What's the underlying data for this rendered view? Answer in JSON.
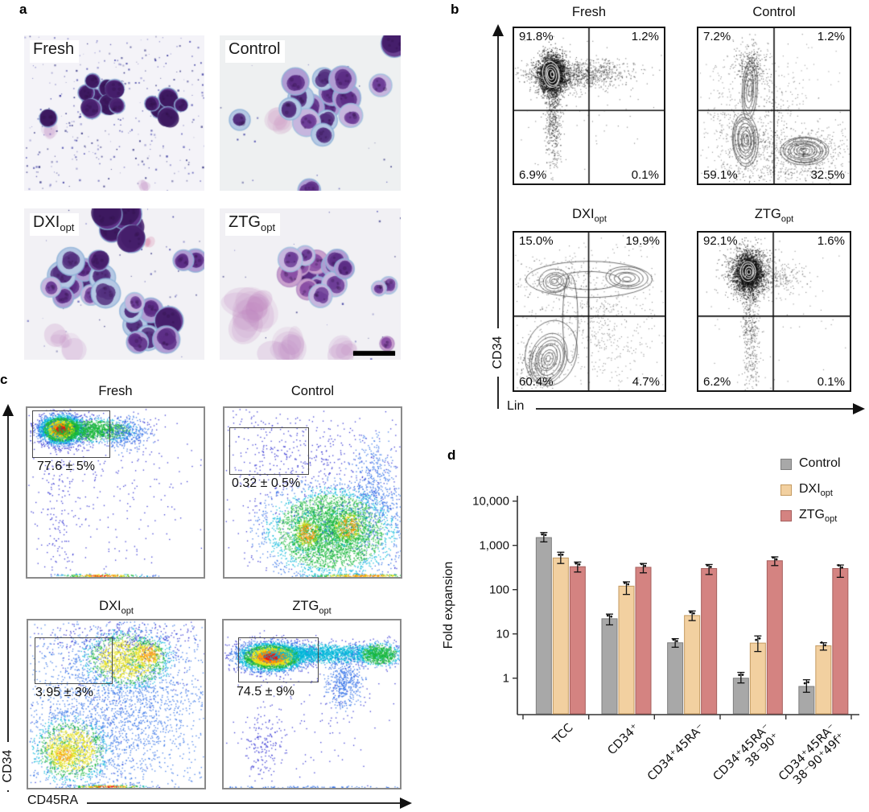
{
  "panel_a": {
    "label": "a",
    "images": [
      {
        "title_base": "Fresh",
        "title_sub": ""
      },
      {
        "title_base": "Control",
        "title_sub": ""
      },
      {
        "title_base": "DXI",
        "title_sub": "opt"
      },
      {
        "title_base": "ZTG",
        "title_sub": "opt"
      }
    ],
    "scale_bar_present": true
  },
  "panel_b": {
    "label": "b",
    "x_axis": "Lin",
    "y_axis": "CD34",
    "plots": [
      {
        "title_base": "Fresh",
        "title_sub": "",
        "q": {
          "tl": "91.8%",
          "tr": "1.2%",
          "bl": "6.9%",
          "br": "0.1%"
        }
      },
      {
        "title_base": "Control",
        "title_sub": "",
        "q": {
          "tl": "7.2%",
          "tr": "1.2%",
          "bl": "59.1%",
          "br": "32.5%"
        }
      },
      {
        "title_base": "DXI",
        "title_sub": "opt",
        "q": {
          "tl": "15.0%",
          "tr": "19.9%",
          "bl": "60.4%",
          "br": "4.7%"
        }
      },
      {
        "title_base": "ZTG",
        "title_sub": "opt",
        "q": {
          "tl": "92.1%",
          "tr": "1.6%",
          "bl": "6.2%",
          "br": "0.1%"
        }
      }
    ]
  },
  "panel_c": {
    "label": "c",
    "x_axis": "CD45RA",
    "y_axis": "CD34",
    "plots": [
      {
        "title_base": "Fresh",
        "title_sub": "",
        "gate_value": "77.6 ± 5%"
      },
      {
        "title_base": "Control",
        "title_sub": "",
        "gate_value": "0.32 ± 0.5%"
      },
      {
        "title_base": "DXI",
        "title_sub": "opt",
        "gate_value": "3.95 ± 3%"
      },
      {
        "title_base": "ZTG",
        "title_sub": "opt",
        "gate_value": "74.5 ± 9%"
      }
    ]
  },
  "panel_d": {
    "label": "d",
    "legend": [
      {
        "label_base": "Control",
        "label_sub": "",
        "color": "#a8a8a8",
        "border": "#7e7e7e"
      },
      {
        "label_base": "DXI",
        "label_sub": "opt",
        "color": "#f2d0a0",
        "border": "#c49a60"
      },
      {
        "label_base": "ZTG",
        "label_sub": "opt",
        "color": "#d48381",
        "border": "#a65f5d"
      }
    ]
  },
  "chart_data": {
    "type": "bar",
    "log_scale": true,
    "title": "",
    "xlabel": "",
    "ylabel": "Fold expansion",
    "ylim": [
      0.15,
      10000
    ],
    "yticks": [
      1,
      10,
      100,
      1000,
      10000
    ],
    "ytick_labels": [
      "1",
      "10",
      "100",
      "1,000",
      "10,000"
    ],
    "categories": [
      "TCC",
      "CD34⁺",
      "CD34⁺45RA⁻",
      "CD34⁺45RA⁻\n38⁻90⁺",
      "CD34⁺45RA⁻\n38⁻90⁺49f⁺"
    ],
    "series": [
      {
        "name": "Control",
        "color": "#a8a8a8",
        "border": "#7e7e7e",
        "values": [
          1500,
          22,
          6.3,
          1.0,
          0.65
        ],
        "err_lo": [
          1200,
          16,
          5.0,
          0.78,
          0.48
        ],
        "err_hi": [
          1950,
          28,
          7.8,
          1.35,
          0.92
        ]
      },
      {
        "name": "DXIopt",
        "color": "#f2d0a0",
        "border": "#c49a60",
        "values": [
          520,
          120,
          26,
          6.2,
          5.4
        ],
        "err_lo": [
          390,
          78,
          20,
          4.0,
          4.3
        ],
        "err_hi": [
          700,
          150,
          33,
          9.0,
          6.3
        ]
      },
      {
        "name": "ZTGopt",
        "color": "#d48381",
        "border": "#a65f5d",
        "values": [
          330,
          320,
          300,
          450,
          300
        ],
        "err_lo": [
          250,
          240,
          220,
          350,
          190
        ],
        "err_hi": [
          420,
          390,
          370,
          550,
          360
        ]
      }
    ],
    "legend_position": "top-right",
    "grid": false
  }
}
